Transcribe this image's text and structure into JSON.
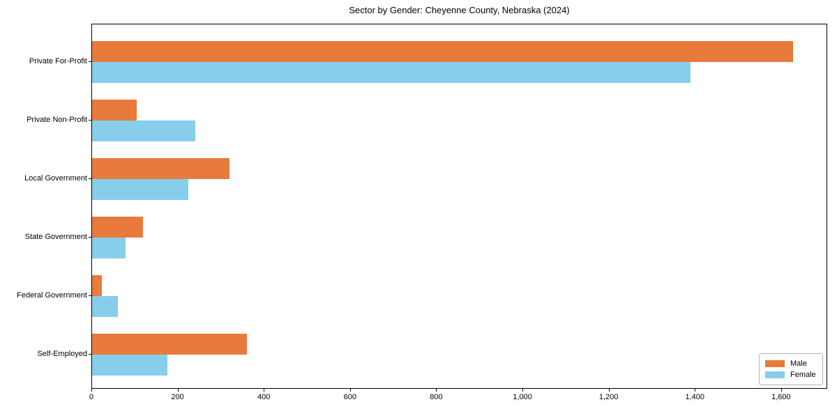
{
  "chart_data": {
    "type": "bar",
    "orientation": "horizontal",
    "title": "Sector by Gender: Cheyenne County, Nebraska (2024)",
    "categories": [
      "Private For-Profit",
      "Private Non-Profit",
      "Local Government",
      "State Government",
      "Federal Government",
      "Self-Employed"
    ],
    "series": [
      {
        "name": "Male",
        "color": "#e87a3c",
        "values": [
          1626,
          104,
          318,
          118,
          23,
          359
        ]
      },
      {
        "name": "Female",
        "color": "#87ceeb",
        "values": [
          1389,
          240,
          223,
          78,
          60,
          174
        ]
      }
    ],
    "xlabel": "",
    "ylabel": "",
    "xlim": [
      0,
      1707
    ],
    "xticks": {
      "values": [
        0,
        200,
        400,
        600,
        800,
        1000,
        1200,
        1400,
        1600
      ],
      "labels": [
        "0",
        "200",
        "400",
        "600",
        "800",
        "1,000",
        "1,200",
        "1,400",
        "1,600"
      ]
    },
    "grid": false,
    "legend": {
      "position": "lower right"
    }
  }
}
